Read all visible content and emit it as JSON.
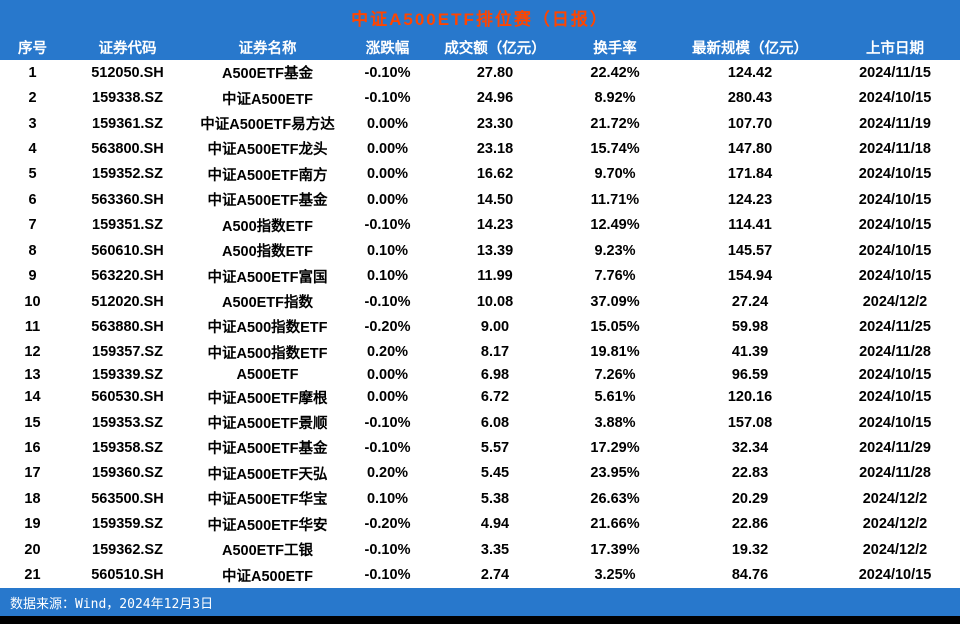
{
  "colors": {
    "band_blue": "#2878CC",
    "title_text": "#FF4500",
    "header_text": "#FFFFFF",
    "body_text": "#000000",
    "bottom_bar": "#000000"
  },
  "chart_data": {
    "type": "table",
    "title": "中证A500ETF排位赛（日报）",
    "source": "数据来源：Wind，2024年12月3日",
    "columns": [
      "序号",
      "证券代码",
      "证券名称",
      "涨跌幅",
      "成交额（亿元）",
      "换手率",
      "最新规模（亿元）",
      "上市日期"
    ],
    "rows": [
      [
        "1",
        "512050.SH",
        "A500ETF基金",
        "-0.10%",
        "27.80",
        "22.42%",
        "124.42",
        "2024/11/15"
      ],
      [
        "2",
        "159338.SZ",
        "中证A500ETF",
        "-0.10%",
        "24.96",
        "8.92%",
        "280.43",
        "2024/10/15"
      ],
      [
        "3",
        "159361.SZ",
        "中证A500ETF易方达",
        "0.00%",
        "23.30",
        "21.72%",
        "107.70",
        "2024/11/19"
      ],
      [
        "4",
        "563800.SH",
        "中证A500ETF龙头",
        "0.00%",
        "23.18",
        "15.74%",
        "147.80",
        "2024/11/18"
      ],
      [
        "5",
        "159352.SZ",
        "中证A500ETF南方",
        "0.00%",
        "16.62",
        "9.70%",
        "171.84",
        "2024/10/15"
      ],
      [
        "6",
        "563360.SH",
        "中证A500ETF基金",
        "0.00%",
        "14.50",
        "11.71%",
        "124.23",
        "2024/10/15"
      ],
      [
        "7",
        "159351.SZ",
        "A500指数ETF",
        "-0.10%",
        "14.23",
        "12.49%",
        "114.41",
        "2024/10/15"
      ],
      [
        "8",
        "560610.SH",
        "A500指数ETF",
        "0.10%",
        "13.39",
        "9.23%",
        "145.57",
        "2024/10/15"
      ],
      [
        "9",
        "563220.SH",
        "中证A500ETF富国",
        "0.10%",
        "11.99",
        "7.76%",
        "154.94",
        "2024/10/15"
      ],
      [
        "10",
        "512020.SH",
        "A500ETF指数",
        "-0.10%",
        "10.08",
        "37.09%",
        "27.24",
        "2024/12/2"
      ],
      [
        "11",
        "563880.SH",
        "中证A500指数ETF",
        "-0.20%",
        "9.00",
        "15.05%",
        "59.98",
        "2024/11/25"
      ],
      [
        "12",
        "159357.SZ",
        "中证A500指数ETF",
        "0.20%",
        "8.17",
        "19.81%",
        "41.39",
        "2024/11/28"
      ],
      [
        "13",
        "159339.SZ",
        "A500ETF",
        "0.00%",
        "6.98",
        "7.26%",
        "96.59",
        "2024/10/15"
      ],
      [
        "14",
        "560530.SH",
        "中证A500ETF摩根",
        "0.00%",
        "6.72",
        "5.61%",
        "120.16",
        "2024/10/15"
      ],
      [
        "15",
        "159353.SZ",
        "中证A500ETF景顺",
        "-0.10%",
        "6.08",
        "3.88%",
        "157.08",
        "2024/10/15"
      ],
      [
        "16",
        "159358.SZ",
        "中证A500ETF基金",
        "-0.10%",
        "5.57",
        "17.29%",
        "32.34",
        "2024/11/29"
      ],
      [
        "17",
        "159360.SZ",
        "中证A500ETF天弘",
        "0.20%",
        "5.45",
        "23.95%",
        "22.83",
        "2024/11/28"
      ],
      [
        "18",
        "563500.SH",
        "中证A500ETF华宝",
        "0.10%",
        "5.38",
        "26.63%",
        "20.29",
        "2024/12/2"
      ],
      [
        "19",
        "159359.SZ",
        "中证A500ETF华安",
        "-0.20%",
        "4.94",
        "21.66%",
        "22.86",
        "2024/12/2"
      ],
      [
        "20",
        "159362.SZ",
        "A500ETF工银",
        "-0.10%",
        "3.35",
        "17.39%",
        "19.32",
        "2024/12/2"
      ],
      [
        "21",
        "560510.SH",
        "中证A500ETF",
        "-0.10%",
        "2.74",
        "3.25%",
        "84.76",
        "2024/10/15"
      ]
    ]
  }
}
